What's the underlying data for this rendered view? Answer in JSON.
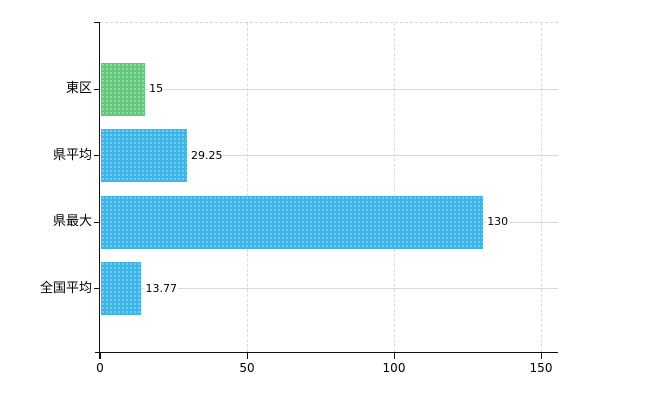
{
  "chart_data": {
    "type": "bar",
    "orientation": "horizontal",
    "title": "",
    "xlabel": "",
    "ylabel": "",
    "categories": [
      "東区",
      "県平均",
      "県最大",
      "全国平均"
    ],
    "values": [
      15,
      29.25,
      130,
      13.77
    ],
    "value_labels": [
      "15",
      "29.25",
      "130",
      "13.77"
    ],
    "bar_colors": [
      "#62c97a",
      "#3cb6e8",
      "#3cb6e8",
      "#3cb6e8"
    ],
    "xlim": [
      0,
      150
    ],
    "x_ticks": [
      0,
      50,
      100,
      150
    ],
    "x_tick_labels": [
      "0",
      "50",
      "100",
      "150"
    ],
    "grid": true,
    "legend": "none",
    "colors": {
      "green_bar": "#62c97a",
      "blue_bar": "#3cb6e8",
      "axis_line": "#111111",
      "gridline": "#d9d9d9",
      "text": "#000000",
      "background": "#ffffff"
    }
  }
}
